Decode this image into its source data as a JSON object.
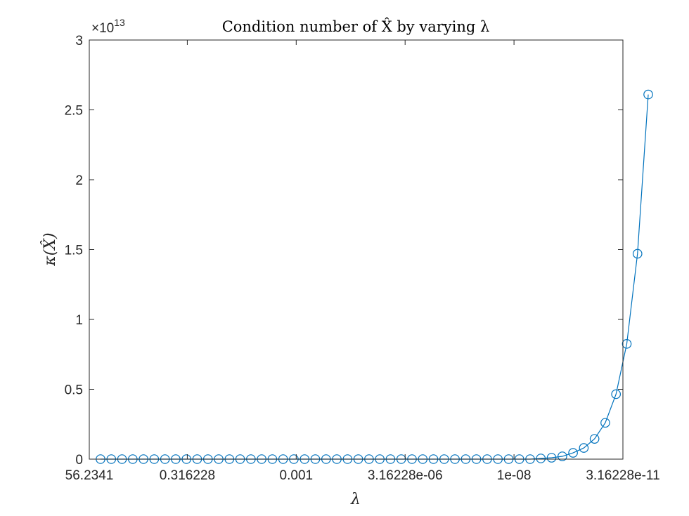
{
  "chart_data": {
    "type": "line",
    "title": "Condition number of X̂ by varying λ",
    "xlabel": "λ",
    "ylabel": "κ(X̂)",
    "x_scale": "log",
    "x_reversed": true,
    "xlim": [
      56.2341,
      3.16228e-11
    ],
    "ylim": [
      0,
      30000000000000.0
    ],
    "y_exponent_label": {
      "base": "×10",
      "power": "13"
    },
    "x_tick_labels": [
      "56.2341",
      "0.316228",
      "0.001",
      "3.16228e-06",
      "1e-08",
      "3.16228e-11"
    ],
    "y_tick_labels": [
      "0",
      "0.5",
      "1",
      "1.5",
      "2",
      "2.5",
      "3"
    ],
    "y_ticks": [
      0,
      5000000000000.0,
      10000000000000.0,
      15000000000000.0,
      20000000000000.0,
      25000000000000.0,
      30000000000000.0
    ],
    "grid": false,
    "marker": "circle",
    "line_color": "#0072BD",
    "series": [
      {
        "values": [
          0,
          0,
          0,
          0,
          0,
          0,
          0,
          0,
          0,
          0,
          0,
          0,
          0,
          0,
          0,
          0,
          0,
          0,
          0,
          0,
          0,
          0,
          0,
          0,
          0,
          0,
          0,
          0,
          0,
          0,
          0,
          0,
          0,
          0,
          0,
          0,
          0,
          0,
          0,
          0,
          0,
          50000000000.0,
          100000000000.0,
          200000000000.0,
          450000000000.0,
          800000000000.0,
          1450000000000.0,
          2600000000000.0,
          4650000000000.0,
          8250000000000.0,
          14700000000000.0,
          26100000000000.0
        ]
      }
    ]
  }
}
